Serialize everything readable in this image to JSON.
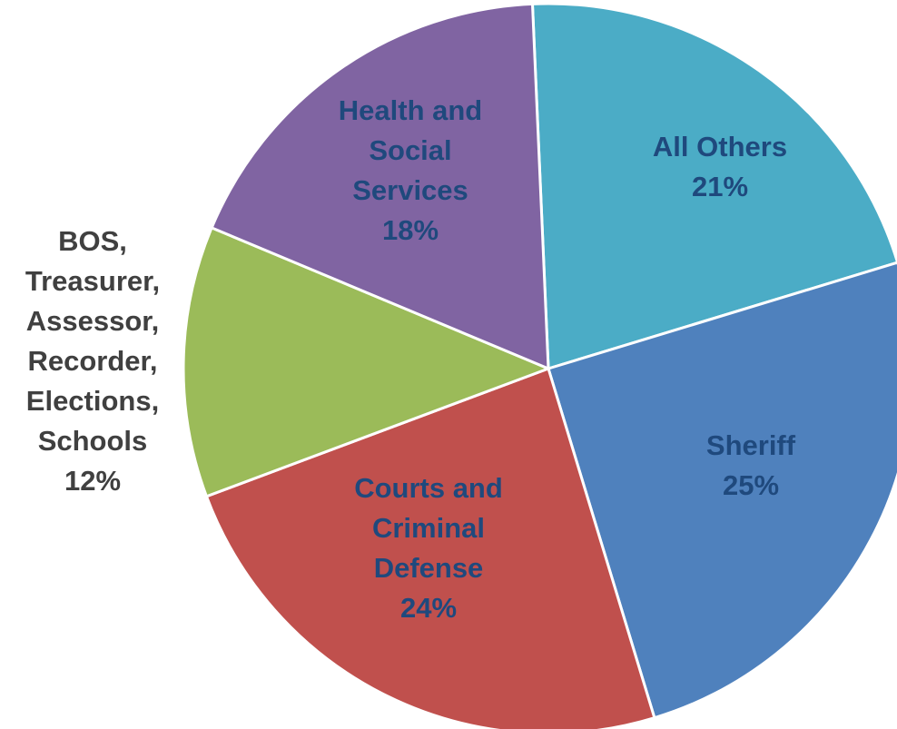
{
  "chart_data": {
    "type": "pie",
    "title": "",
    "slices": [
      {
        "label": [
          "All Others"
        ],
        "value": 21,
        "display": "21%",
        "color": "#4BACC6",
        "text_color": "#1F497D"
      },
      {
        "label": [
          "Sheriff"
        ],
        "value": 25,
        "display": "25%",
        "color": "#4F81BD",
        "text_color": "#1F497D"
      },
      {
        "label": [
          "Courts and",
          "Criminal",
          "Defense"
        ],
        "value": 24,
        "display": "24%",
        "color": "#C0504D",
        "text_color": "#1F497D"
      },
      {
        "label": [
          "BOS,",
          "Treasurer,",
          "Assessor,",
          "Recorder,",
          "Elections,",
          "Schools"
        ],
        "value": 12,
        "display": "12%",
        "color": "#9BBB59",
        "text_color": "#404040"
      },
      {
        "label": [
          "Health and",
          "Social",
          "Services"
        ],
        "value": 18,
        "display": "18%",
        "color": "#8064A2",
        "text_color": "#1F497D"
      }
    ],
    "legend": "none"
  }
}
